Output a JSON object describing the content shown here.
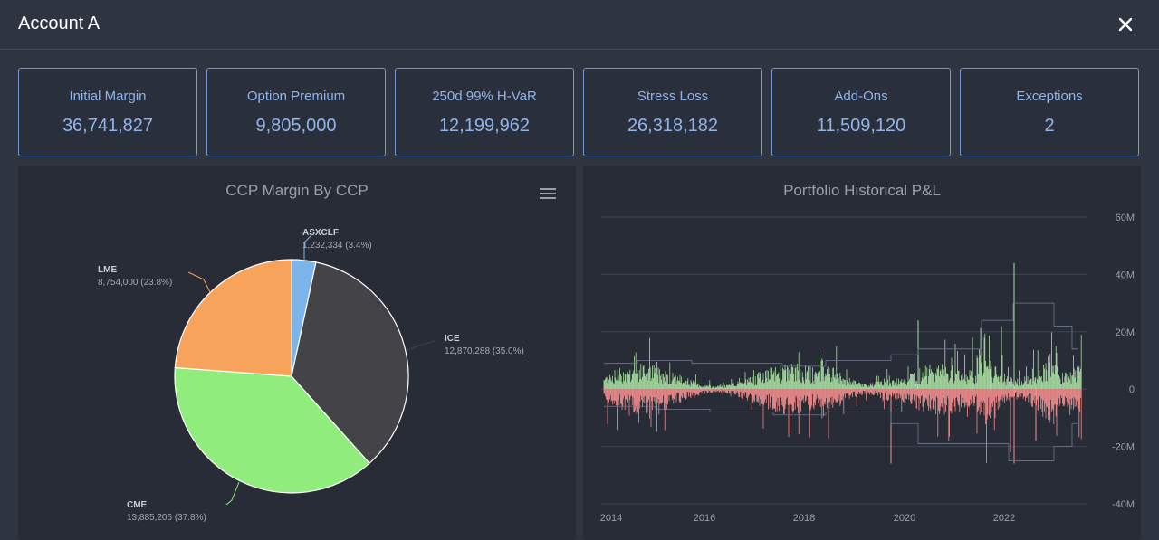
{
  "window": {
    "title": "Account A",
    "close_icon": "close-icon"
  },
  "metrics": [
    {
      "label": "Initial Margin",
      "value": "36,741,827"
    },
    {
      "label": "Option Premium",
      "value": "9,805,000"
    },
    {
      "label": "250d 99% H-VaR",
      "value": "12,199,962"
    },
    {
      "label": "Stress Loss",
      "value": "26,318,182"
    },
    {
      "label": "Add-Ons",
      "value": "11,509,120"
    },
    {
      "label": "Exceptions",
      "value": "2"
    }
  ],
  "colors": {
    "accent": "#8fb4ee",
    "card_border": "#6f95d4",
    "positive": "#a8dca0",
    "negative": "#f08c8c"
  },
  "chart_data": [
    {
      "type": "pie",
      "title": "CCP Margin By CCP",
      "menu_icon": "hamburger-menu-icon",
      "slices": [
        {
          "name": "ASXCLF",
          "value": 1232334,
          "label": "1,232,334 (3.4%)",
          "color": "#7cb5ec"
        },
        {
          "name": "ICE",
          "value": 12870288,
          "label": "12,870,288 (35.0%)",
          "color": "#434348"
        },
        {
          "name": "CME",
          "value": 13885206,
          "label": "13,885,206 (37.8%)",
          "color": "#90ed7d"
        },
        {
          "name": "LME",
          "value": 8754000,
          "label": "8,754,000 (23.8%)",
          "color": "#f7a35c"
        }
      ]
    },
    {
      "type": "bar",
      "title": "Portfolio Historical P&L",
      "x_ticks": [
        "2014",
        "2016",
        "2018",
        "2020",
        "2022"
      ],
      "y_ticks": [
        "60M",
        "40M",
        "20M",
        "0",
        "-20M",
        "-40M"
      ],
      "ylim": [
        -40,
        60
      ],
      "series": [
        {
          "color": "#a8dca0"
        },
        {
          "color": "#f08c8c"
        }
      ]
    }
  ]
}
